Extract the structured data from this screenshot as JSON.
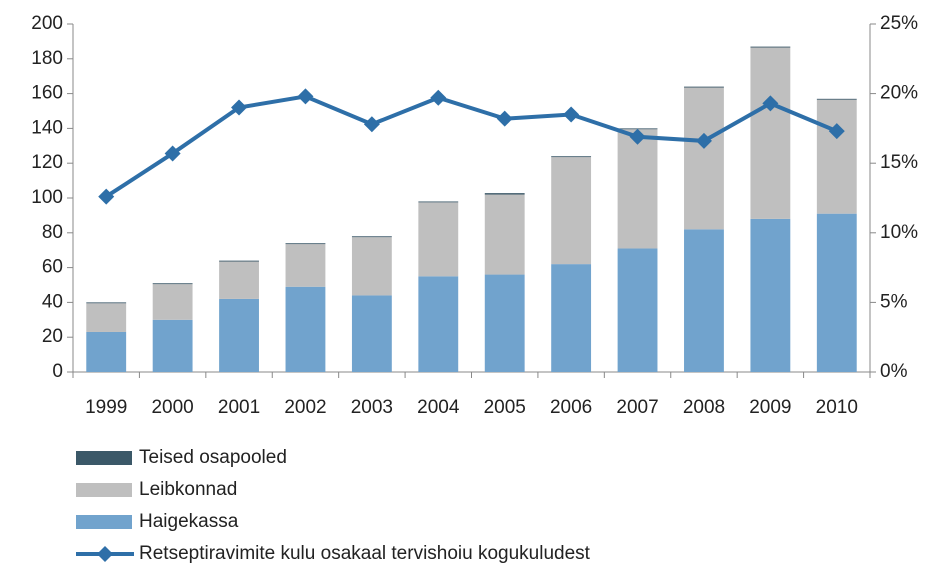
{
  "chart_data": {
    "type": "bar",
    "categories": [
      "1999",
      "2000",
      "2001",
      "2002",
      "2003",
      "2004",
      "2005",
      "2006",
      "2007",
      "2008",
      "2009",
      "2010"
    ],
    "series": [
      {
        "name": "Haigekassa",
        "color": "#71a3cd",
        "values": [
          23,
          30,
          42,
          49,
          44,
          55,
          56,
          62,
          71,
          82,
          88,
          91
        ]
      },
      {
        "name": "Leibkonnad",
        "color": "#bfbfbf",
        "values": [
          16.5,
          20.5,
          21.5,
          24.5,
          33.5,
          42.5,
          46,
          61.5,
          68.5,
          81.5,
          98.5,
          65.5
        ]
      },
      {
        "name": "Teised osapooled",
        "color": "#3b5868",
        "values": [
          0.5,
          0.5,
          0.5,
          0.5,
          0.5,
          0.5,
          0.8,
          0.5,
          0.5,
          0.5,
          0.5,
          0.5
        ]
      },
      {
        "name": "Retseptiravimite kulu osakaal tervishoiu kogukuludest",
        "color": "#2e6fa8",
        "type": "line",
        "axis": "y2",
        "values": [
          12.6,
          15.7,
          19.0,
          19.8,
          17.8,
          19.7,
          18.2,
          18.5,
          16.9,
          16.6,
          19.3,
          17.3
        ]
      }
    ],
    "stacked": true,
    "ylim": [
      0,
      200
    ],
    "yticks": [
      0,
      20,
      40,
      60,
      80,
      100,
      120,
      140,
      160,
      180,
      200
    ],
    "y2lim": [
      0,
      25
    ],
    "y2ticks": [
      {
        "value": 0,
        "label": "0%"
      },
      {
        "value": 5,
        "label": "5%"
      },
      {
        "value": 10,
        "label": "10%"
      },
      {
        "value": 15,
        "label": "15%"
      },
      {
        "value": 20,
        "label": "20%"
      },
      {
        "value": 25,
        "label": "25%"
      }
    ],
    "legend": "bottom-left"
  }
}
